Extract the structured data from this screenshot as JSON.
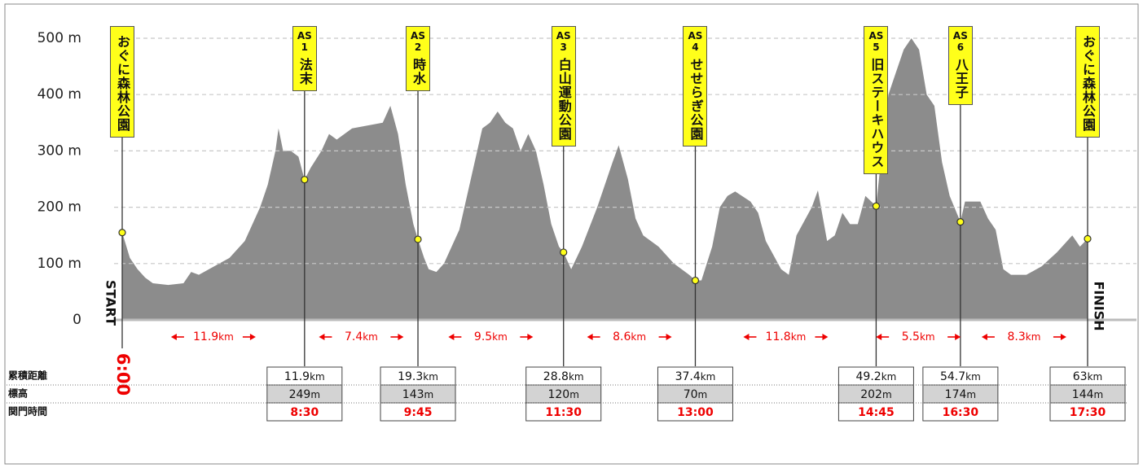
{
  "chart_data": {
    "type": "area",
    "x": [
      0,
      0.5,
      1,
      1.5,
      2,
      3,
      4,
      4.5,
      5,
      6,
      7,
      8,
      9,
      9.5,
      10,
      10.2,
      10.5,
      11,
      11.5,
      11.9,
      12.3,
      13,
      13.5,
      14,
      15,
      16,
      17,
      17.5,
      18,
      18.5,
      19,
      19.3,
      19.7,
      20,
      20.5,
      21,
      22,
      23,
      23.5,
      24,
      24.5,
      25,
      25.5,
      26,
      26.5,
      27,
      27.5,
      28,
      28.5,
      28.8,
      29.3,
      30,
      31,
      32,
      32.4,
      33,
      33.5,
      34,
      35,
      36,
      37,
      37.4,
      37.8,
      38.5,
      39,
      39.5,
      40,
      41,
      41.5,
      42,
      43,
      43.5,
      44,
      45,
      45.4,
      46,
      46.5,
      47,
      47.5,
      48,
      48.5,
      49.2,
      49.5,
      50,
      50.5,
      51,
      51.5,
      52,
      52.5,
      53,
      53.5,
      54,
      54.7,
      55,
      56,
      56.5,
      57,
      57.5,
      58,
      59,
      60,
      61,
      62,
      62.5,
      63
    ],
    "values": [
      155,
      110,
      90,
      75,
      65,
      62,
      65,
      85,
      80,
      95,
      110,
      140,
      200,
      240,
      300,
      340,
      300,
      300,
      290,
      249,
      270,
      300,
      330,
      320,
      340,
      345,
      350,
      380,
      330,
      240,
      170,
      143,
      110,
      90,
      85,
      100,
      160,
      280,
      340,
      350,
      370,
      350,
      340,
      300,
      330,
      300,
      240,
      170,
      130,
      120,
      90,
      130,
      200,
      280,
      310,
      250,
      180,
      150,
      130,
      100,
      80,
      70,
      70,
      130,
      200,
      220,
      228,
      210,
      190,
      140,
      90,
      80,
      150,
      200,
      230,
      140,
      150,
      190,
      170,
      170,
      220,
      202,
      280,
      400,
      440,
      480,
      500,
      480,
      400,
      380,
      280,
      220,
      174,
      210,
      210,
      180,
      160,
      90,
      80,
      80,
      95,
      120,
      150,
      130,
      144
    ],
    "color": "#8c8c8c",
    "xlim": [
      0,
      63
    ],
    "ylim": [
      0,
      500
    ],
    "yticks": [
      0,
      {
        "value": 100,
        "label": "100 m"
      },
      {
        "value": 200,
        "label": "200 m"
      },
      {
        "value": 300,
        "label": "300 m"
      },
      {
        "value": 400,
        "label": "400 m"
      },
      {
        "value": 500,
        "label": "500 m"
      }
    ],
    "grid": true,
    "start_label": "START",
    "finish_label": "FINISH",
    "start_time": "6:00",
    "distance_unit": "km",
    "elevation_unit": "m",
    "stations": [
      {
        "name": "おぐに森林公園",
        "km": 0,
        "elevation": 155
      },
      {
        "prefix": "AS",
        "number": 1,
        "name": "法末",
        "km": 11.9,
        "elevation": 249,
        "cutoff": "8:30"
      },
      {
        "prefix": "AS",
        "number": 2,
        "name": "時水",
        "km": 19.3,
        "elevation": 143,
        "cutoff": "9:45"
      },
      {
        "prefix": "AS",
        "number": 3,
        "name": "白山運動公園",
        "km": 28.8,
        "elevation": 120,
        "cutoff": "11:30"
      },
      {
        "prefix": "AS",
        "number": 4,
        "name": "せせらぎ公園",
        "km": 37.4,
        "elevation": 70,
        "cutoff": "13:00"
      },
      {
        "prefix": "AS",
        "number": 5,
        "name": "旧ステーキハウス",
        "km": 49.2,
        "elevation": 202,
        "cutoff": "14:45"
      },
      {
        "prefix": "AS",
        "number": 6,
        "name": "八王子",
        "km": 54.7,
        "elevation": 174,
        "cutoff": "16:30"
      },
      {
        "name": "おぐに森林公園",
        "km": 63,
        "elevation": 144,
        "cutoff": "17:30"
      }
    ],
    "segments": [
      11.9,
      7.4,
      9.5,
      8.6,
      11.8,
      5.5,
      8.3
    ],
    "table_rows": [
      "累積距離",
      "標高",
      "関門時間"
    ]
  }
}
